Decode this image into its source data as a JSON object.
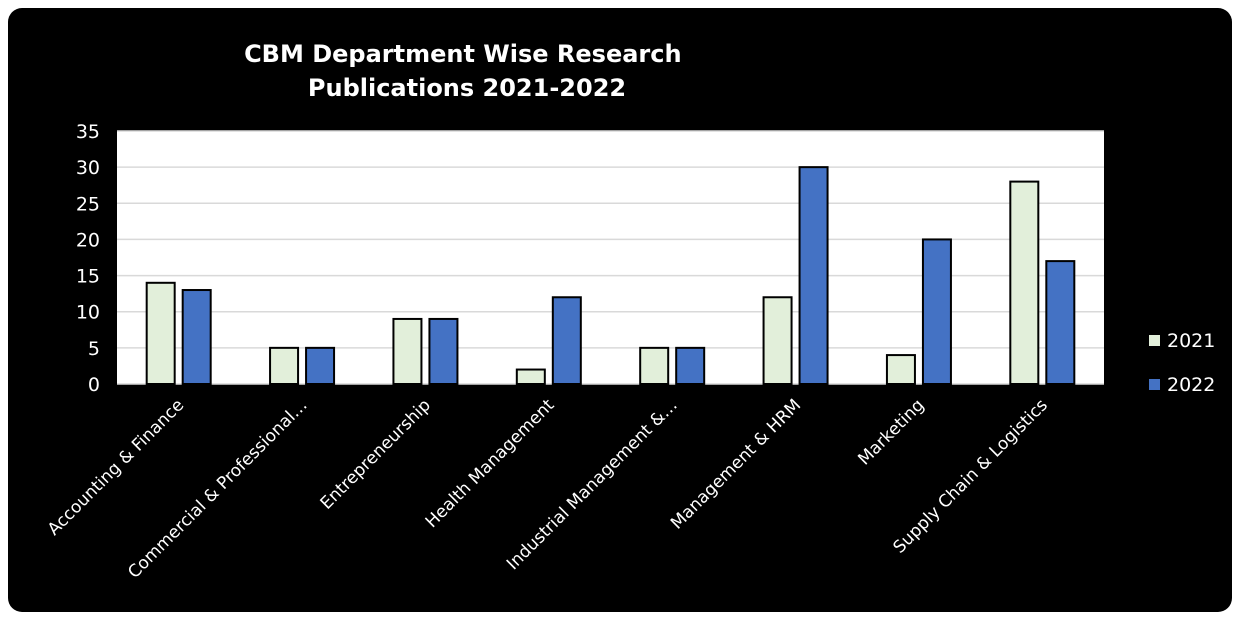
{
  "chart_data": {
    "type": "bar",
    "title": "CBM Department Wise Research Publications 2021-2022",
    "title_lines": [
      "CBM Department Wise Research",
      "Publications 2021-2022"
    ],
    "categories": [
      "Accounting & Finance",
      "Commercial & Professional…",
      "Entrepreneurship",
      "Health Management",
      "Industrial Management &…",
      "Management & HRM",
      "Marketing",
      "Supply Chain & Logistics"
    ],
    "series": [
      {
        "name": "2021",
        "color": "#e2efda",
        "values": [
          14,
          5,
          9,
          2,
          5,
          12,
          4,
          28
        ]
      },
      {
        "name": "2022",
        "color": "#4472c4",
        "values": [
          13,
          5,
          9,
          12,
          5,
          30,
          20,
          17
        ]
      }
    ],
    "xlabel": "",
    "ylabel": "",
    "ylim": [
      0,
      35
    ],
    "yticks": [
      0,
      5,
      10,
      15,
      20,
      25,
      30,
      35
    ],
    "grid": true,
    "legend_position": "right",
    "background": "#000000",
    "plot_background": "#ffffff"
  }
}
